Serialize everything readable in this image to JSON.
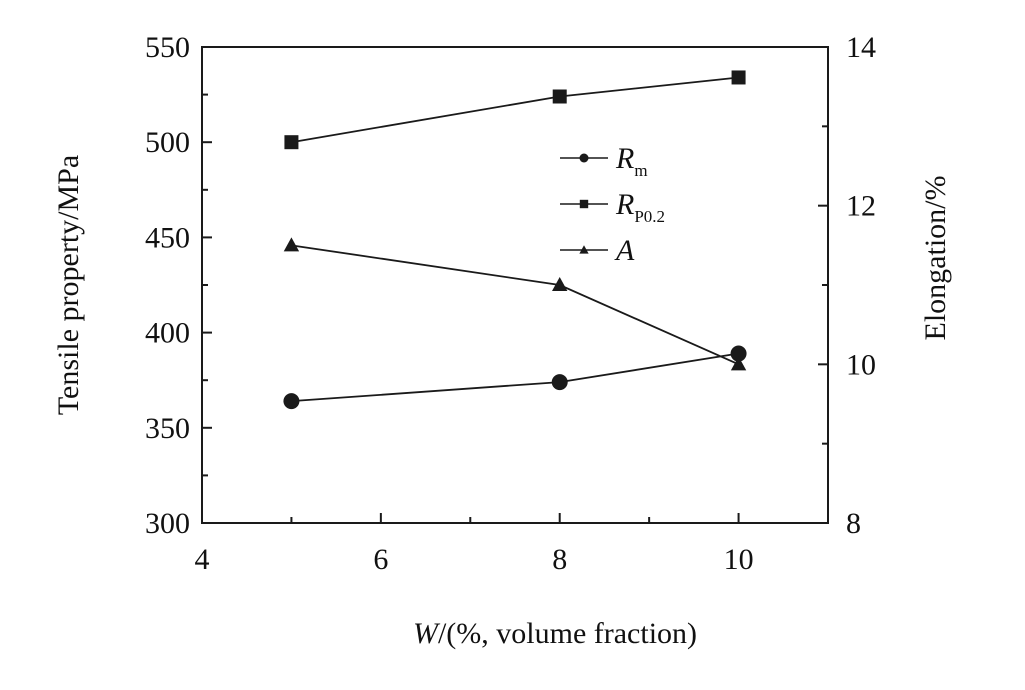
{
  "chart_data": {
    "type": "line",
    "title": "",
    "xlabel": {
      "italic": "W",
      "rest": "/(%, volume fraction)"
    },
    "ylabel_left": "Tensile property/MPa",
    "ylabel_right": "Elongation/%",
    "xlim": [
      4,
      11
    ],
    "ylim_left": [
      300,
      550
    ],
    "ylim_right": [
      8,
      14
    ],
    "x_ticks": [
      4,
      6,
      8,
      10
    ],
    "y_left_ticks": [
      300,
      350,
      400,
      450,
      500,
      550
    ],
    "y_right_ticks": [
      8,
      10,
      12,
      14
    ],
    "grid": false,
    "legend_position": "upper-middle",
    "x": [
      5,
      8,
      10
    ],
    "series": [
      {
        "name": "Rm",
        "label_main": "R",
        "label_sub": "m",
        "axis": "left",
        "marker": "circle",
        "values": [
          364,
          374,
          389
        ]
      },
      {
        "name": "RP0.2",
        "label_main": "R",
        "label_sub": "P0.2",
        "axis": "left",
        "marker": "square",
        "values": [
          500,
          524,
          534
        ]
      },
      {
        "name": "A",
        "label_main": "A",
        "label_sub": "",
        "axis": "right",
        "marker": "triangle",
        "values": [
          11.5,
          11.0,
          10.0
        ]
      }
    ],
    "color": "#1a1a1a"
  }
}
